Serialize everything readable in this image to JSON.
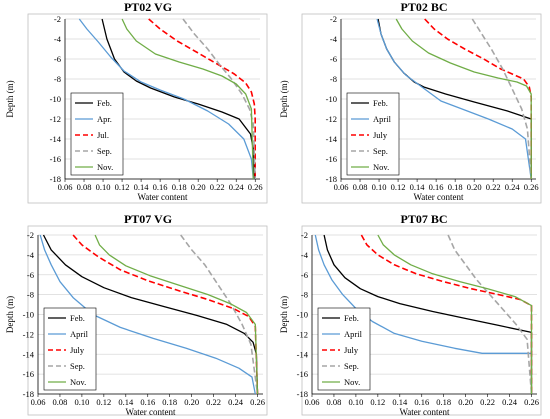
{
  "chart_data": [
    {
      "type": "line",
      "title": "PT02 VG",
      "xlabel": "Water content",
      "ylabel": "Depth (m)",
      "xlim": [
        0.06,
        0.265
      ],
      "ylim": [
        -18,
        -2
      ],
      "xticks": [
        "0.06",
        "0.08",
        "0.10",
        "0.12",
        "0.14",
        "0.16",
        "0.18",
        "0.20",
        "0.22",
        "0.24",
        "0.26"
      ],
      "yticks": [
        "-2",
        "-4",
        "-6",
        "-8",
        "-10",
        "-12",
        "-14",
        "-16",
        "-18"
      ],
      "grid": "horizontal",
      "legend_position": "bottom-left",
      "series": [
        {
          "name": "Feb.",
          "color": "#000000",
          "dash": "solid",
          "x": [
            0.099,
            0.104,
            0.112,
            0.122,
            0.135,
            0.15,
            0.175,
            0.2,
            0.225,
            0.243,
            0.255,
            0.258,
            0.259
          ],
          "y": [
            -2,
            -4,
            -6,
            -7.3,
            -8.2,
            -8.9,
            -9.8,
            -10.5,
            -11.3,
            -12,
            -13.5,
            -15,
            -18
          ]
        },
        {
          "name": "Apr.",
          "color": "#5b9bd5",
          "dash": "solid",
          "x": [
            0.075,
            0.083,
            0.095,
            0.108,
            0.122,
            0.14,
            0.16,
            0.185,
            0.21,
            0.232,
            0.248,
            0.256,
            0.258
          ],
          "y": [
            -2,
            -3,
            -4.3,
            -5.8,
            -7.2,
            -8.3,
            -9.1,
            -10,
            -11.2,
            -12.5,
            -14,
            -16,
            -18
          ]
        },
        {
          "name": "Jul.",
          "color": "#ff0000",
          "dash": "dashed",
          "x": [
            0.148,
            0.16,
            0.178,
            0.2,
            0.22,
            0.238,
            0.25,
            0.256,
            0.259,
            0.26,
            0.26
          ],
          "y": [
            -2,
            -3,
            -4.2,
            -5.4,
            -6.5,
            -7.5,
            -8.4,
            -9.3,
            -10.5,
            -12,
            -18
          ]
        },
        {
          "name": "Sep.",
          "color": "#a6a6a6",
          "dash": "dashed",
          "x": [
            0.184,
            0.196,
            0.21,
            0.222,
            0.235,
            0.246,
            0.254,
            0.258,
            0.26
          ],
          "y": [
            -2,
            -3.5,
            -5,
            -6.5,
            -8,
            -9.5,
            -11,
            -12.5,
            -18
          ]
        },
        {
          "name": "Nov.",
          "color": "#70ad47",
          "dash": "solid",
          "x": [
            0.12,
            0.125,
            0.135,
            0.155,
            0.18,
            0.205,
            0.225,
            0.24,
            0.25,
            0.256,
            0.258
          ],
          "y": [
            -2,
            -3,
            -4.2,
            -5.5,
            -6.3,
            -7,
            -7.7,
            -8.5,
            -9.5,
            -11,
            -18
          ]
        }
      ]
    },
    {
      "type": "line",
      "title": "PT02 BC",
      "xlabel": "Water content",
      "ylabel": "Depth (m)",
      "xlim": [
        0.06,
        0.265
      ],
      "ylim": [
        -18,
        -2
      ],
      "xticks": [
        "0.06",
        "0.08",
        "0.10",
        "0.12",
        "0.14",
        "0.16",
        "0.18",
        "0.20",
        "0.22",
        "0.24",
        "0.26"
      ],
      "yticks": [
        "-2",
        "-4",
        "-6",
        "-8",
        "-10",
        "-12",
        "-14",
        "-16",
        "-18"
      ],
      "grid": "horizontal",
      "legend_position": "bottom-left",
      "series": [
        {
          "name": "Feb.",
          "color": "#000000",
          "dash": "solid",
          "x": [
            0.099,
            0.102,
            0.108,
            0.116,
            0.126,
            0.137,
            0.147,
            0.17,
            0.2,
            0.235,
            0.26,
            0.26
          ],
          "y": [
            -2,
            -3.5,
            -5,
            -6.3,
            -7.4,
            -8.3,
            -8.8,
            -9.5,
            -10.3,
            -11.2,
            -12,
            -18
          ]
        },
        {
          "name": "April",
          "color": "#5b9bd5",
          "dash": "solid",
          "x": [
            0.098,
            0.102,
            0.108,
            0.116,
            0.128,
            0.145,
            0.165,
            0.19,
            0.215,
            0.24,
            0.254,
            0.26
          ],
          "y": [
            -2,
            -3.5,
            -5,
            -6.3,
            -7.6,
            -8.8,
            -10.2,
            -11.1,
            -12,
            -13,
            -14,
            -18
          ]
        },
        {
          "name": "July",
          "color": "#ff0000",
          "dash": "dashed",
          "x": [
            0.148,
            0.158,
            0.172,
            0.19,
            0.21,
            0.228,
            0.24,
            0.252,
            0.258,
            0.26,
            0.26
          ],
          "y": [
            -2,
            -3,
            -4,
            -5,
            -6,
            -7,
            -7.5,
            -8,
            -8.8,
            -9.8,
            -18
          ]
        },
        {
          "name": "Sep.",
          "color": "#a6a6a6",
          "dash": "dashed",
          "x": [
            0.198,
            0.208,
            0.218,
            0.23,
            0.24,
            0.25,
            0.256,
            0.26
          ],
          "y": [
            -2,
            -3.5,
            -5,
            -7,
            -9,
            -11,
            -13,
            -18
          ]
        },
        {
          "name": "Nov.",
          "color": "#70ad47",
          "dash": "solid",
          "x": [
            0.118,
            0.124,
            0.135,
            0.152,
            0.175,
            0.2,
            0.225,
            0.245,
            0.255,
            0.26,
            0.26
          ],
          "y": [
            -2,
            -3,
            -4.2,
            -5.4,
            -6.4,
            -7.3,
            -7.9,
            -8.3,
            -8.7,
            -9.5,
            -18
          ]
        }
      ]
    },
    {
      "type": "line",
      "title": "PT07 VG",
      "xlabel": "Water content",
      "ylabel": "Depth (m)",
      "xlim": [
        0.06,
        0.265
      ],
      "ylim": [
        -18,
        -2
      ],
      "xticks": [
        "0.06",
        "0.08",
        "0.10",
        "0.12",
        "0.14",
        "0.16",
        "0.18",
        "0.20",
        "0.22",
        "0.24",
        "0.26"
      ],
      "yticks": [
        "-2",
        "-4",
        "-6",
        "-8",
        "-10",
        "-12",
        "-14",
        "-16",
        "-18"
      ],
      "grid": "horizontal",
      "legend_position": "bottom-left",
      "series": [
        {
          "name": "Feb.",
          "color": "#000000",
          "dash": "solid",
          "x": [
            0.065,
            0.072,
            0.085,
            0.1,
            0.12,
            0.145,
            0.175,
            0.205,
            0.232,
            0.248,
            0.256,
            0.259,
            0.26
          ],
          "y": [
            -2,
            -3.5,
            -5,
            -6.2,
            -7.3,
            -8.3,
            -9.2,
            -10.1,
            -11,
            -11.9,
            -12.8,
            -14,
            -18
          ]
        },
        {
          "name": "April",
          "color": "#5b9bd5",
          "dash": "solid",
          "x": [
            0.062,
            0.066,
            0.072,
            0.08,
            0.092,
            0.11,
            0.135,
            0.165,
            0.195,
            0.222,
            0.243,
            0.255,
            0.258
          ],
          "y": [
            -2,
            -3.5,
            -5,
            -6.7,
            -8.3,
            -10,
            -11.3,
            -12.4,
            -13.4,
            -14.4,
            -15.4,
            -16.3,
            -18
          ]
        },
        {
          "name": "July",
          "color": "#ff0000",
          "dash": "dashed",
          "x": [
            0.092,
            0.1,
            0.115,
            0.135,
            0.16,
            0.188,
            0.215,
            0.238,
            0.252,
            0.258,
            0.26
          ],
          "y": [
            -2,
            -3,
            -4.2,
            -5.5,
            -6.6,
            -7.6,
            -8.5,
            -9.4,
            -10.2,
            -11.2,
            -18
          ]
        },
        {
          "name": "Sep.",
          "color": "#a6a6a6",
          "dash": "dashed",
          "x": [
            0.19,
            0.2,
            0.212,
            0.224,
            0.236,
            0.246,
            0.254,
            0.26
          ],
          "y": [
            -2,
            -3.5,
            -5,
            -7,
            -9,
            -11,
            -13,
            -18
          ]
        },
        {
          "name": "Nov.",
          "color": "#70ad47",
          "dash": "solid",
          "x": [
            0.112,
            0.116,
            0.125,
            0.14,
            0.162,
            0.19,
            0.215,
            0.235,
            0.25,
            0.258,
            0.26
          ],
          "y": [
            -2,
            -3,
            -4,
            -5.1,
            -6.1,
            -7.1,
            -8,
            -8.9,
            -9.8,
            -11,
            -18
          ]
        }
      ]
    },
    {
      "type": "line",
      "title": "PT07 BC",
      "xlabel": "Water content",
      "ylabel": "Depth (m)",
      "xlim": [
        0.06,
        0.265
      ],
      "ylim": [
        -18,
        -2
      ],
      "xticks": [
        "0.06",
        "0.08",
        "0.10",
        "0.12",
        "0.14",
        "0.16",
        "0.18",
        "0.20",
        "0.22",
        "0.24",
        "0.26"
      ],
      "yticks": [
        "-2",
        "-4",
        "-6",
        "-8",
        "-10",
        "-12",
        "-14",
        "-16",
        "-18"
      ],
      "grid": "horizontal",
      "legend_position": "bottom-left",
      "series": [
        {
          "name": "Feb.",
          "color": "#000000",
          "dash": "solid",
          "x": [
            0.071,
            0.074,
            0.08,
            0.09,
            0.104,
            0.12,
            0.14,
            0.17,
            0.2,
            0.23,
            0.26,
            0.26
          ],
          "y": [
            -2,
            -3.5,
            -5,
            -6.3,
            -7.4,
            -8.2,
            -8.9,
            -9.7,
            -10.4,
            -11.1,
            -11.8,
            -18
          ]
        },
        {
          "name": "April",
          "color": "#5b9bd5",
          "dash": "solid",
          "x": [
            0.063,
            0.066,
            0.071,
            0.078,
            0.088,
            0.1,
            0.115,
            0.135,
            0.16,
            0.19,
            0.215,
            0.26
          ],
          "y": [
            -2,
            -3.5,
            -5,
            -6.5,
            -8,
            -9.4,
            -10.7,
            -11.9,
            -12.7,
            -13.4,
            -13.9,
            -13.9
          ]
        },
        {
          "name": "July",
          "color": "#ff0000",
          "dash": "dashed",
          "x": [
            0.105,
            0.11,
            0.12,
            0.135,
            0.155,
            0.18,
            0.205,
            0.23,
            0.25,
            0.26,
            0.26
          ],
          "y": [
            -2,
            -3,
            -4,
            -5,
            -5.9,
            -6.7,
            -7.4,
            -8,
            -8.5,
            -9.1,
            -18
          ]
        },
        {
          "name": "Sep.",
          "color": "#a6a6a6",
          "dash": "dashed",
          "x": [
            0.184,
            0.19,
            0.2,
            0.21,
            0.222,
            0.234,
            0.246,
            0.256,
            0.26
          ],
          "y": [
            -2,
            -3.5,
            -5,
            -6.5,
            -8,
            -9.5,
            -11,
            -12.5,
            -18
          ]
        },
        {
          "name": "Nov.",
          "color": "#70ad47",
          "dash": "solid",
          "x": [
            0.12,
            0.125,
            0.135,
            0.15,
            0.17,
            0.195,
            0.22,
            0.245,
            0.26,
            0.26
          ],
          "y": [
            -2,
            -3,
            -4,
            -5,
            -5.9,
            -6.7,
            -7.4,
            -8.2,
            -9.1,
            -18
          ]
        }
      ]
    }
  ]
}
